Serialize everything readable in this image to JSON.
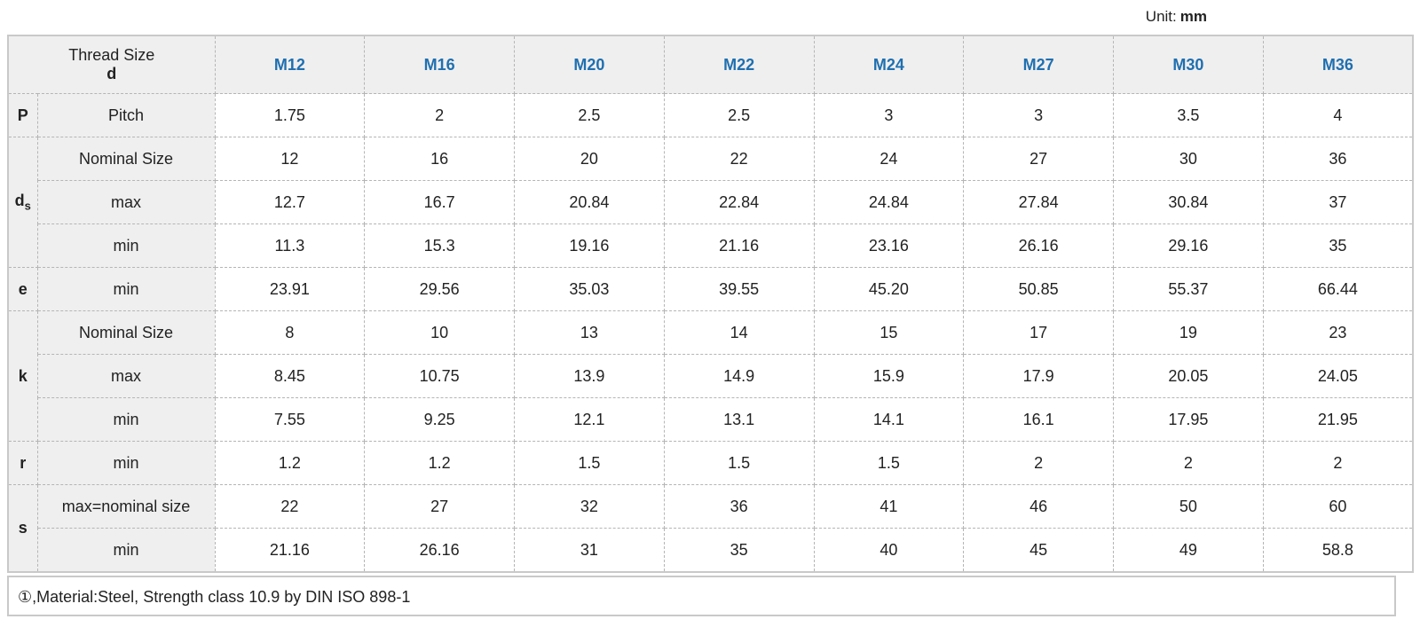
{
  "unit": {
    "label": "Unit:",
    "value": "mm"
  },
  "header": {
    "thread_label": "Thread Size",
    "thread_symbol": "d",
    "sizes": [
      "M12",
      "M16",
      "M20",
      "M22",
      "M24",
      "M27",
      "M30",
      "M36"
    ]
  },
  "rows": [
    {
      "group": "P",
      "label": "Pitch",
      "values": [
        "1.75",
        "2",
        "2.5",
        "2.5",
        "3",
        "3",
        "3.5",
        "4"
      ]
    },
    {
      "group": "ds",
      "label": "Nominal Size",
      "values": [
        "12",
        "16",
        "20",
        "22",
        "24",
        "27",
        "30",
        "36"
      ]
    },
    {
      "group": "ds",
      "label": "max",
      "values": [
        "12.7",
        "16.7",
        "20.84",
        "22.84",
        "24.84",
        "27.84",
        "30.84",
        "37"
      ]
    },
    {
      "group": "ds",
      "label": "min",
      "values": [
        "11.3",
        "15.3",
        "19.16",
        "21.16",
        "23.16",
        "26.16",
        "29.16",
        "35"
      ]
    },
    {
      "group": "e",
      "label": "min",
      "values": [
        "23.91",
        "29.56",
        "35.03",
        "39.55",
        "45.20",
        "50.85",
        "55.37",
        "66.44"
      ]
    },
    {
      "group": "k",
      "label": "Nominal Size",
      "values": [
        "8",
        "10",
        "13",
        "14",
        "15",
        "17",
        "19",
        "23"
      ]
    },
    {
      "group": "k",
      "label": "max",
      "values": [
        "8.45",
        "10.75",
        "13.9",
        "14.9",
        "15.9",
        "17.9",
        "20.05",
        "24.05"
      ]
    },
    {
      "group": "k",
      "label": "min",
      "values": [
        "7.55",
        "9.25",
        "12.1",
        "13.1",
        "14.1",
        "16.1",
        "17.95",
        "21.95"
      ]
    },
    {
      "group": "r",
      "label": "min",
      "values": [
        "1.2",
        "1.2",
        "1.5",
        "1.5",
        "1.5",
        "2",
        "2",
        "2"
      ]
    },
    {
      "group": "s",
      "label": "max=nominal size",
      "values": [
        "22",
        "27",
        "32",
        "36",
        "41",
        "46",
        "50",
        "60"
      ]
    },
    {
      "group": "s",
      "label": "min",
      "values": [
        "21.16",
        "26.16",
        "31",
        "35",
        "40",
        "45",
        "49",
        "58.8"
      ]
    }
  ],
  "groups": {
    "P": {
      "main": "P",
      "sub": ""
    },
    "ds": {
      "main": "d",
      "sub": "s"
    },
    "e": {
      "main": "e",
      "sub": ""
    },
    "k": {
      "main": "k",
      "sub": ""
    },
    "r": {
      "main": "r",
      "sub": ""
    },
    "s": {
      "main": "s",
      "sub": ""
    }
  },
  "note": "①,Material:Steel, Strength class 10.9 by DIN ISO 898-1"
}
